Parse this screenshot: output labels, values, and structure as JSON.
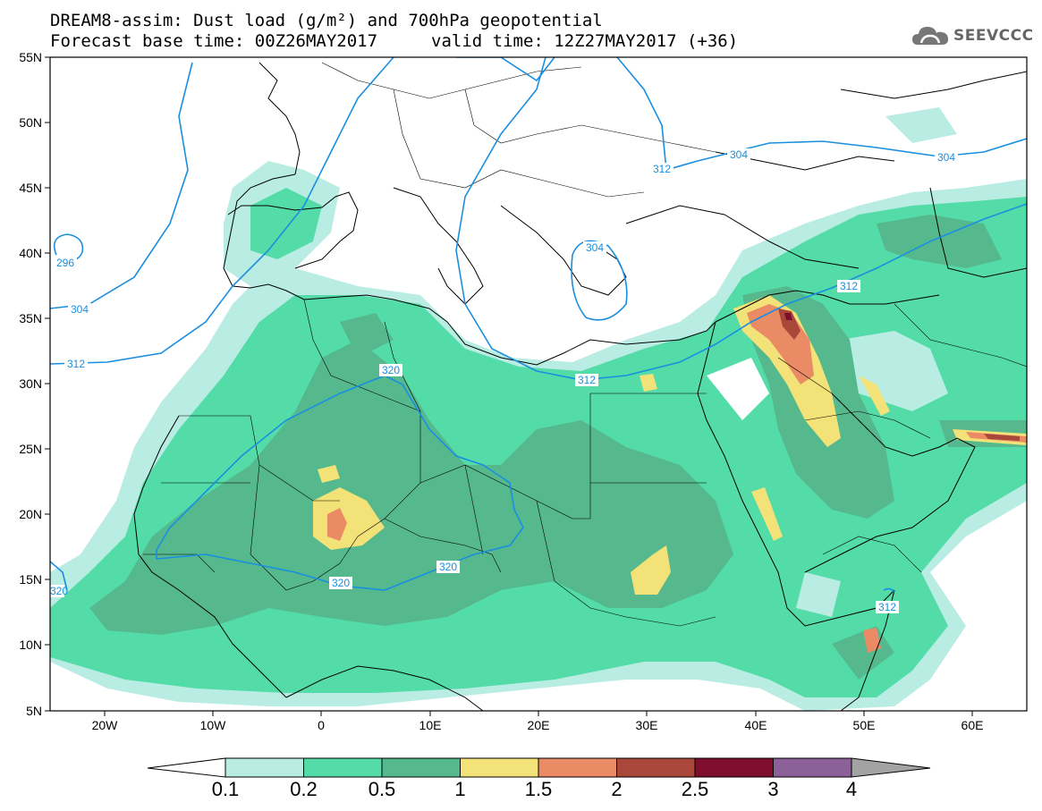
{
  "header": {
    "title_line1": "DREAM8-assim: Dust load (g/m²) and 700hPa geopotential",
    "title_line2": "Forecast base time: 00Z26MAY2017",
    "valid_time": "valid time: 12Z27MAY2017 (+36)",
    "logo_text": "SEEVCCC"
  },
  "axes": {
    "lat_labels": [
      "55N",
      "50N",
      "45N",
      "40N",
      "35N",
      "30N",
      "25N",
      "20N",
      "15N",
      "10N",
      "5N"
    ],
    "lon_labels": [
      "20W",
      "10W",
      "0",
      "10E",
      "20E",
      "30E",
      "40E",
      "50E",
      "60E"
    ]
  },
  "contour_labels": [
    "296",
    "304",
    "304",
    "304",
    "312",
    "312",
    "312",
    "312",
    "312",
    "320",
    "320",
    "320",
    "320",
    "304"
  ],
  "colorbar": {
    "levels": [
      "0.1",
      "0.2",
      "0.5",
      "1",
      "1.5",
      "2",
      "2.5",
      "3",
      "4"
    ],
    "colors": [
      "#ffffff",
      "#b9ede3",
      "#53dba8",
      "#56b98e",
      "#f3e278",
      "#ea8b65",
      "#a8473a",
      "#7d0f2c",
      "#8c6199",
      "#a3a3a3"
    ]
  },
  "style": {
    "contour_color": "#1a8fe0",
    "coast_color": "#000000"
  }
}
